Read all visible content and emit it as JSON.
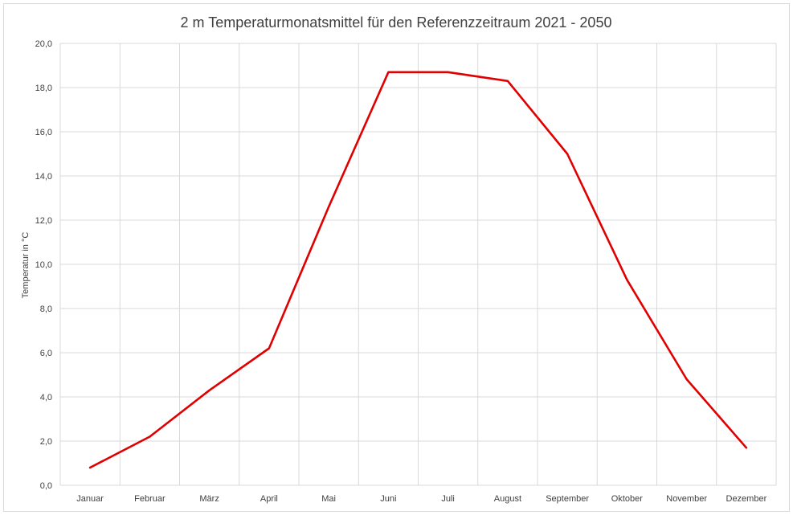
{
  "chart_data": {
    "type": "line",
    "title": "2 m Temperaturmonatsmittel für den Referenzzeitraum 2021 - 2050",
    "xlabel": "",
    "ylabel": "Temperatur  in °C",
    "categories": [
      "Januar",
      "Februar",
      "März",
      "April",
      "Mai",
      "Juni",
      "Juli",
      "August",
      "September",
      "Oktober",
      "November",
      "Dezember"
    ],
    "series": [
      {
        "color": "#e00000",
        "values": [
          0.8,
          2.2,
          4.3,
          6.2,
          12.6,
          18.7,
          18.7,
          18.3,
          15.0,
          9.3,
          4.8,
          1.7
        ]
      }
    ],
    "ylim": [
      0,
      20
    ],
    "ytick_step": 2,
    "ytick_labels": [
      "0,0",
      "2,0",
      "4,0",
      "6,0",
      "8,0",
      "10,0",
      "12,0",
      "14,0",
      "16,0",
      "18,0",
      "20,0"
    ],
    "grid": true,
    "legend": "none"
  }
}
